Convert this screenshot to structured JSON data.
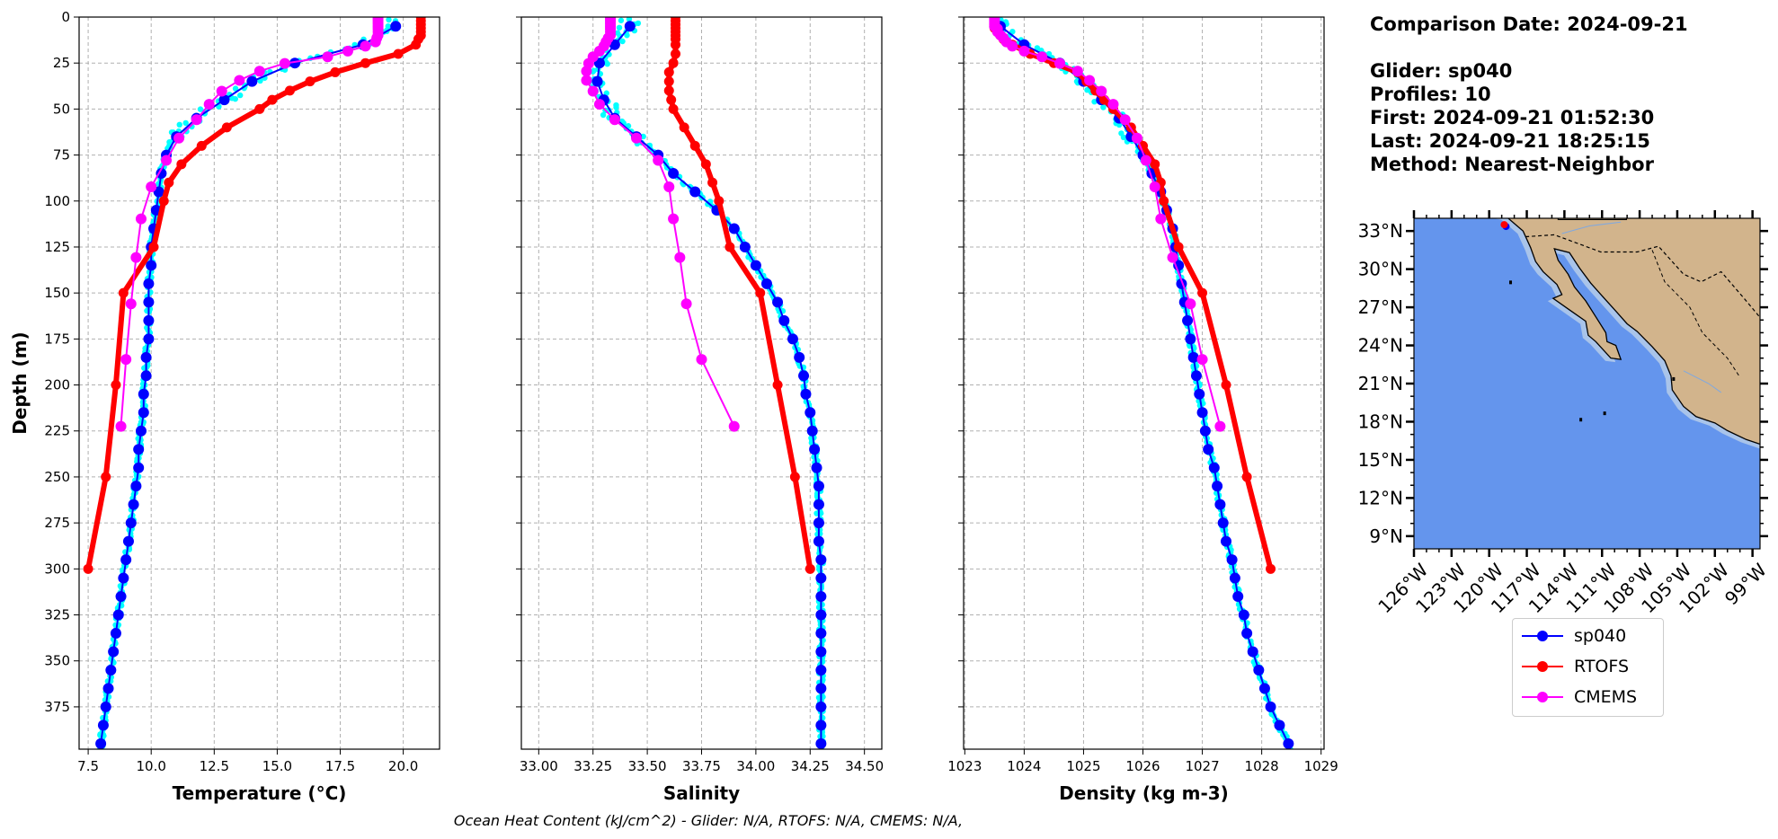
{
  "info": {
    "comparison_date": "Comparison Date: 2024-09-21",
    "glider": "Glider: sp040",
    "profiles": "Profiles: 10",
    "first": "First: 2024-09-21 01:52:30",
    "last": "Last: 2024-09-21 18:25:15",
    "method": "Method: Nearest-Neighbor"
  },
  "caption": "Ocean Heat Content (kJ/cm^2) - Glider: N/A,  RTOFS: N/A,  CMEMS: N/A,",
  "legend": [
    {
      "name": "sp040",
      "color": "#0000ff"
    },
    {
      "name": "RTOFS",
      "color": "#ff0000"
    },
    {
      "name": "CMEMS",
      "color": "#ff00ff"
    }
  ],
  "colors": {
    "glider_raw": "#00ffff",
    "grid": "#b0b0b0",
    "ocean": "#6495ed",
    "shelf": "#a9c4ea",
    "land": "#d2b48c"
  },
  "chart_data": [
    {
      "type": "line",
      "xlabel": "Temperature (°C)",
      "ylabel": "Depth (m)",
      "xlim": [
        7.14,
        21.44
      ],
      "ylim": [
        398,
        0
      ],
      "grid": true,
      "xticks": [
        "7.5",
        "10.0",
        "12.5",
        "15.0",
        "17.5",
        "20.0"
      ],
      "yticks": [
        "0",
        "25",
        "50",
        "75",
        "100",
        "125",
        "150",
        "175",
        "200",
        "225",
        "250",
        "275",
        "300",
        "325",
        "350",
        "375"
      ],
      "series": [
        {
          "name": "sp040",
          "depth": [
            5,
            15,
            25,
            35,
            45,
            55,
            65,
            75,
            85,
            95,
            105,
            115,
            125,
            135,
            145,
            155,
            165,
            175,
            185,
            195,
            205,
            215,
            225,
            235,
            245,
            255,
            265,
            275,
            285,
            295,
            305,
            315,
            325,
            335,
            345,
            355,
            365,
            375,
            385,
            395
          ],
          "values": [
            19.7,
            18.4,
            15.7,
            14.0,
            12.9,
            11.8,
            11.0,
            10.6,
            10.4,
            10.3,
            10.2,
            10.1,
            10.0,
            10.0,
            9.9,
            9.9,
            9.9,
            9.9,
            9.8,
            9.8,
            9.7,
            9.7,
            9.6,
            9.5,
            9.5,
            9.4,
            9.3,
            9.2,
            9.1,
            9.0,
            8.9,
            8.8,
            8.7,
            8.6,
            8.5,
            8.4,
            8.3,
            8.2,
            8.1,
            8.0
          ]
        },
        {
          "name": "RTOFS",
          "depth": [
            0,
            2,
            4,
            6,
            8,
            10,
            12,
            15,
            20,
            25,
            30,
            35,
            40,
            45,
            50,
            60,
            70,
            80,
            90,
            100,
            125,
            150,
            200,
            250,
            300
          ],
          "values": [
            20.7,
            20.7,
            20.7,
            20.7,
            20.7,
            20.7,
            20.6,
            20.5,
            19.8,
            18.5,
            17.3,
            16.3,
            15.5,
            14.8,
            14.3,
            13.0,
            12.0,
            11.2,
            10.7,
            10.5,
            10.1,
            8.9,
            8.6,
            8.2,
            7.5
          ]
        },
        {
          "name": "CMEMS",
          "depth": [
            0.5,
            1.5,
            2.6,
            3.8,
            5.1,
            6.4,
            8,
            9.8,
            11.4,
            13.5,
            15.8,
            18.5,
            21.6,
            25.2,
            29.4,
            34.4,
            40.3,
            47.4,
            55.8,
            65.8,
            77.9,
            92.3,
            109.7,
            130.7,
            155.9,
            186.1,
            222.5
          ],
          "values": [
            19.0,
            19.0,
            19.0,
            19.0,
            19.0,
            19.0,
            19.0,
            19.0,
            18.95,
            18.9,
            18.5,
            17.8,
            17.0,
            15.3,
            14.3,
            13.5,
            12.8,
            12.3,
            11.8,
            11.1,
            10.6,
            10.0,
            9.6,
            9.4,
            9.2,
            9.0,
            8.8
          ]
        }
      ]
    },
    {
      "type": "line",
      "xlabel": "Salinity",
      "xlim": [
        32.92,
        34.58
      ],
      "ylim": [
        398,
        0
      ],
      "grid": true,
      "xticks": [
        "33.00",
        "33.25",
        "33.50",
        "33.75",
        "34.00",
        "34.25",
        "34.50"
      ],
      "series": [
        {
          "name": "sp040",
          "depth": [
            5,
            15,
            25,
            35,
            45,
            55,
            65,
            75,
            85,
            95,
            105,
            115,
            125,
            135,
            145,
            155,
            165,
            175,
            185,
            195,
            205,
            215,
            225,
            235,
            245,
            255,
            265,
            275,
            285,
            295,
            305,
            315,
            325,
            335,
            345,
            355,
            365,
            375,
            385,
            395
          ],
          "values": [
            33.42,
            33.35,
            33.28,
            33.27,
            33.3,
            33.35,
            33.45,
            33.55,
            33.62,
            33.72,
            33.82,
            33.9,
            33.95,
            34.0,
            34.05,
            34.1,
            34.13,
            34.17,
            34.2,
            34.22,
            34.23,
            34.25,
            34.26,
            34.27,
            34.28,
            34.29,
            34.29,
            34.29,
            34.29,
            34.3,
            34.3,
            34.3,
            34.3,
            34.3,
            34.3,
            34.3,
            34.3,
            34.3,
            34.3,
            34.3
          ]
        },
        {
          "name": "RTOFS",
          "depth": [
            0,
            2,
            4,
            6,
            8,
            10,
            12,
            15,
            20,
            25,
            30,
            35,
            40,
            45,
            50,
            60,
            70,
            80,
            90,
            100,
            125,
            150,
            200,
            250,
            300
          ],
          "values": [
            33.63,
            33.63,
            33.63,
            33.63,
            33.63,
            33.63,
            33.63,
            33.63,
            33.63,
            33.62,
            33.6,
            33.6,
            33.6,
            33.61,
            33.62,
            33.67,
            33.72,
            33.77,
            33.8,
            33.83,
            33.88,
            34.02,
            34.1,
            34.18,
            34.25
          ]
        },
        {
          "name": "CMEMS",
          "depth": [
            0.5,
            1.5,
            2.6,
            3.8,
            5.1,
            6.4,
            8,
            9.8,
            11.4,
            13.5,
            15.8,
            18.5,
            21.6,
            25.2,
            29.4,
            34.4,
            40.3,
            47.4,
            55.8,
            65.8,
            77.9,
            92.3,
            109.7,
            130.7,
            155.9,
            186.1,
            222.5
          ],
          "values": [
            33.33,
            33.33,
            33.33,
            33.33,
            33.33,
            33.33,
            33.33,
            33.33,
            33.32,
            33.31,
            33.3,
            33.28,
            33.25,
            33.23,
            33.22,
            33.22,
            33.25,
            33.28,
            33.35,
            33.45,
            33.55,
            33.6,
            33.62,
            33.65,
            33.68,
            33.75,
            33.9
          ]
        }
      ]
    },
    {
      "type": "line",
      "xlabel": "Density (kg m-3)",
      "xlim": [
        1022.98,
        1029.05
      ],
      "ylim": [
        398,
        0
      ],
      "grid": true,
      "xticks": [
        "1023",
        "1024",
        "1025",
        "1026",
        "1027",
        "1028",
        "1029"
      ],
      "series": [
        {
          "name": "sp040",
          "depth": [
            5,
            15,
            25,
            35,
            45,
            55,
            65,
            75,
            85,
            95,
            105,
            115,
            125,
            135,
            145,
            155,
            165,
            175,
            185,
            195,
            205,
            215,
            225,
            235,
            245,
            255,
            265,
            275,
            285,
            295,
            305,
            315,
            325,
            335,
            345,
            355,
            365,
            375,
            385,
            395
          ],
          "values": [
            1023.6,
            1024.0,
            1024.6,
            1025.0,
            1025.3,
            1025.6,
            1025.8,
            1026.0,
            1026.15,
            1026.3,
            1026.4,
            1026.5,
            1026.55,
            1026.6,
            1026.65,
            1026.7,
            1026.75,
            1026.8,
            1026.85,
            1026.9,
            1026.95,
            1027.0,
            1027.05,
            1027.1,
            1027.2,
            1027.25,
            1027.3,
            1027.35,
            1027.4,
            1027.5,
            1027.55,
            1027.6,
            1027.7,
            1027.75,
            1027.85,
            1027.95,
            1028.05,
            1028.15,
            1028.3,
            1028.45
          ]
        },
        {
          "name": "RTOFS",
          "depth": [
            0,
            2,
            4,
            6,
            8,
            10,
            12,
            15,
            20,
            25,
            30,
            35,
            40,
            45,
            50,
            60,
            70,
            80,
            90,
            100,
            125,
            150,
            200,
            250,
            300
          ],
          "values": [
            1023.5,
            1023.5,
            1023.5,
            1023.5,
            1023.55,
            1023.6,
            1023.65,
            1023.8,
            1024.1,
            1024.5,
            1024.9,
            1025.05,
            1025.2,
            1025.35,
            1025.5,
            1025.8,
            1026.0,
            1026.2,
            1026.3,
            1026.35,
            1026.6,
            1027.0,
            1027.4,
            1027.75,
            1028.15
          ]
        },
        {
          "name": "CMEMS",
          "depth": [
            0.5,
            1.5,
            2.6,
            3.8,
            5.1,
            6.4,
            8,
            9.8,
            11.4,
            13.5,
            15.8,
            18.5,
            21.6,
            25.2,
            29.4,
            34.4,
            40.3,
            47.4,
            55.8,
            65.8,
            77.9,
            92.3,
            109.7,
            130.7,
            155.9,
            186.1,
            222.5
          ],
          "values": [
            1023.5,
            1023.5,
            1023.5,
            1023.5,
            1023.5,
            1023.55,
            1023.55,
            1023.6,
            1023.65,
            1023.7,
            1023.8,
            1024.0,
            1024.3,
            1024.6,
            1024.9,
            1025.1,
            1025.3,
            1025.5,
            1025.7,
            1025.9,
            1026.05,
            1026.2,
            1026.3,
            1026.5,
            1026.8,
            1027.0,
            1027.3
          ]
        }
      ]
    }
  ],
  "map": {
    "lat_ticks": [
      "9°N",
      "12°N",
      "15°N",
      "18°N",
      "21°N",
      "24°N",
      "27°N",
      "30°N",
      "33°N"
    ],
    "lon_ticks": [
      "126°W",
      "123°W",
      "120°W",
      "117°W",
      "114°W",
      "111°W",
      "108°W",
      "105°W",
      "102°W",
      "99°W"
    ],
    "lat_range": [
      8,
      34
    ],
    "lon_range": [
      -126,
      -98.4
    ],
    "glider_position": {
      "lon": -118.8,
      "lat": 33.5
    }
  }
}
